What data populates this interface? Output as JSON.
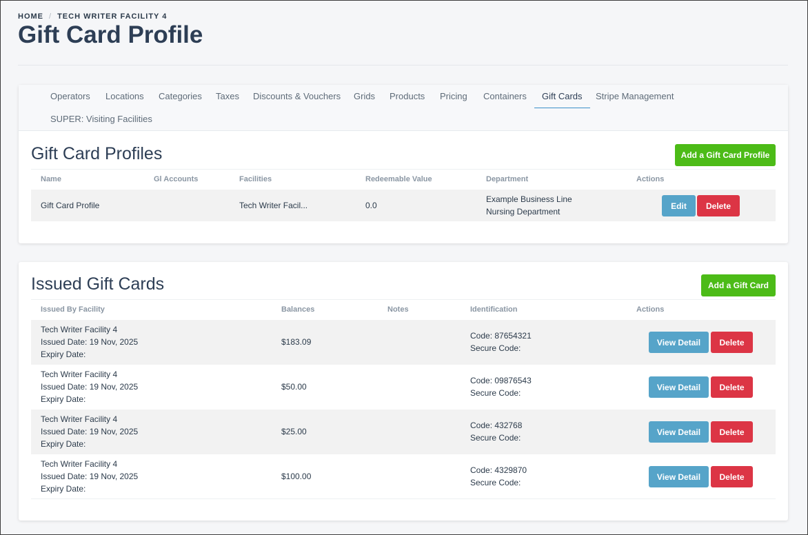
{
  "breadcrumb": {
    "home": "HOME",
    "sep": "/",
    "current": "TECH WRITER FACILITY 4"
  },
  "page": {
    "title": "Gift Card Profile"
  },
  "tabs": [
    "Operators",
    "Locations",
    "Categories",
    "Taxes",
    "Discounts & Vouchers",
    "Grids",
    "Products",
    "Pricing",
    "Containers",
    "Gift Cards",
    "Stripe Management",
    "SUPER: Visiting Facilities"
  ],
  "active_tab": "Gift Cards",
  "profiles": {
    "title": "Gift Card Profiles",
    "add_button": "Add a Gift Card Profile",
    "columns": [
      "Name",
      "Gl Accounts",
      "Facilities",
      "Redeemable Value",
      "Department",
      "Actions"
    ],
    "rows": [
      {
        "name": "Gift Card Profile",
        "gl_accounts": "",
        "facilities": "Tech Writer Facil...",
        "redeemable_value": "0.0",
        "department_line1": "Example Business Line",
        "department_line2": "Nursing Department",
        "edit": "Edit",
        "delete": "Delete"
      }
    ]
  },
  "issued": {
    "title": "Issued Gift Cards",
    "add_button": "Add a Gift Card",
    "columns": [
      "Issued By Facility",
      "Balances",
      "Notes",
      "Identification",
      "Actions"
    ],
    "rows": [
      {
        "facility": "Tech Writer Facility 4",
        "issued": "Issued Date: 19 Nov, 2025",
        "expiry": "Expiry Date:",
        "balance": "$183.09",
        "notes": "",
        "code": "Code: 87654321",
        "secure": "Secure Code:",
        "view": "View Detail",
        "delete": "Delete"
      },
      {
        "facility": "Tech Writer Facility 4",
        "issued": "Issued Date: 19 Nov, 2025",
        "expiry": "Expiry Date:",
        "balance": "$50.00",
        "notes": "",
        "code": "Code: 09876543",
        "secure": "Secure Code:",
        "view": "View Detail",
        "delete": "Delete"
      },
      {
        "facility": "Tech Writer Facility 4",
        "issued": "Issued Date: 19 Nov, 2025",
        "expiry": "Expiry Date:",
        "balance": "$25.00",
        "notes": "",
        "code": "Code: 432768",
        "secure": "Secure Code:",
        "view": "View Detail",
        "delete": "Delete"
      },
      {
        "facility": "Tech Writer Facility 4",
        "issued": "Issued Date: 19 Nov, 2025",
        "expiry": "Expiry Date:",
        "balance": "$100.00",
        "notes": "",
        "code": "Code: 4329870",
        "secure": "Secure Code:",
        "view": "View Detail",
        "delete": "Delete"
      }
    ]
  },
  "colors": {
    "green": "#4cbb17",
    "blue": "#56a4c9",
    "red": "#dc3545",
    "title": "#2d3e55"
  }
}
